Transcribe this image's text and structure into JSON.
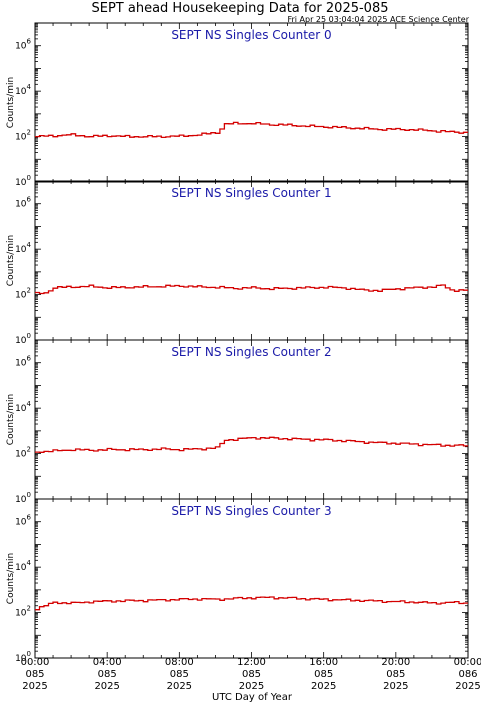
{
  "title": "SEPT ahead Housekeeping Data for 2025-085",
  "timestamp": "Fri Apr 25 03:04:04 2025 ACE Science Center",
  "xlabel": "UTC Day of Year",
  "colors": {
    "panel_title": "#1a1aa8",
    "series": "#d40000",
    "axis": "#000000"
  },
  "chart_data": [
    {
      "type": "line",
      "title": "SEPT NS Singles Counter 0",
      "ylabel": "Counts/min",
      "yscale": "log",
      "ylim": [
        1,
        10000000
      ],
      "yticks": [
        {
          "exp": "0"
        },
        {
          "exp": "2"
        },
        {
          "exp": "4"
        },
        {
          "exp": "6"
        }
      ],
      "xlim": [
        "085 00:00",
        "086 00:00"
      ],
      "series": [
        {
          "x_hours": [
            0,
            1,
            2,
            3,
            4,
            5,
            6,
            7,
            8,
            9,
            10,
            10.5,
            11,
            12,
            13,
            14,
            15,
            16,
            17,
            18,
            19,
            20,
            21,
            22,
            23,
            24
          ],
          "values": [
            100,
            110,
            120,
            100,
            110,
            100,
            100,
            100,
            105,
            120,
            150,
            350,
            380,
            380,
            340,
            320,
            290,
            270,
            250,
            230,
            210,
            210,
            200,
            180,
            160,
            150
          ]
        }
      ]
    },
    {
      "type": "line",
      "title": "SEPT NS Singles Counter 1",
      "ylabel": "Counts/min",
      "yscale": "log",
      "ylim": [
        1,
        10000000
      ],
      "yticks": [
        {
          "exp": "0"
        },
        {
          "exp": "2"
        },
        {
          "exp": "4"
        },
        {
          "exp": "6"
        }
      ],
      "xlim": [
        "085 00:00",
        "086 00:00"
      ],
      "series": [
        {
          "x_hours": [
            0,
            0.5,
            1,
            2,
            3,
            4,
            5,
            6,
            7,
            8,
            9,
            10,
            11,
            12,
            13,
            14,
            15,
            16,
            17,
            18,
            19,
            20,
            21,
            22,
            22.5,
            23,
            24
          ],
          "values": [
            110,
            120,
            200,
            220,
            230,
            200,
            210,
            220,
            230,
            240,
            220,
            210,
            190,
            200,
            180,
            190,
            200,
            210,
            200,
            160,
            150,
            180,
            200,
            220,
            250,
            160,
            150
          ]
        }
      ]
    },
    {
      "type": "line",
      "title": "SEPT NS Singles Counter 2",
      "ylabel": "Counts/min",
      "yscale": "log",
      "ylim": [
        1,
        10000000
      ],
      "yticks": [
        {
          "exp": "0"
        },
        {
          "exp": "2"
        },
        {
          "exp": "4"
        },
        {
          "exp": "6"
        }
      ],
      "xlim": [
        "085 00:00",
        "086 00:00"
      ],
      "series": [
        {
          "x_hours": [
            0,
            1,
            2,
            3,
            4,
            5,
            6,
            7,
            8,
            9,
            10,
            10.5,
            11,
            12,
            13,
            14,
            15,
            16,
            17,
            18,
            19,
            20,
            21,
            22,
            23,
            24
          ],
          "values": [
            120,
            130,
            150,
            140,
            150,
            150,
            150,
            160,
            150,
            160,
            180,
            400,
            420,
            500,
            480,
            450,
            420,
            400,
            370,
            330,
            300,
            280,
            260,
            240,
            230,
            220
          ]
        }
      ]
    },
    {
      "type": "line",
      "title": "SEPT NS Singles Counter 3",
      "ylabel": "Counts/min",
      "yscale": "log",
      "ylim": [
        1,
        10000000
      ],
      "yticks": [
        {
          "exp": "0"
        },
        {
          "exp": "2"
        },
        {
          "exp": "4"
        },
        {
          "exp": "6"
        }
      ],
      "xlim": [
        "085 00:00",
        "086 00:00"
      ],
      "series": [
        {
          "x_hours": [
            0,
            0.5,
            1,
            2,
            3,
            4,
            5,
            6,
            7,
            8,
            9,
            10,
            11,
            12,
            13,
            14,
            15,
            16,
            17,
            18,
            19,
            20,
            21,
            22,
            23,
            24
          ],
          "values": [
            150,
            200,
            280,
            260,
            300,
            320,
            330,
            340,
            360,
            380,
            400,
            380,
            420,
            450,
            460,
            440,
            400,
            380,
            360,
            340,
            320,
            300,
            290,
            260,
            280,
            260
          ]
        }
      ]
    }
  ],
  "x_ticks": [
    {
      "time": "00:00",
      "doy": "085",
      "year": "2025"
    },
    {
      "time": "04:00",
      "doy": "085",
      "year": "2025"
    },
    {
      "time": "08:00",
      "doy": "085",
      "year": "2025"
    },
    {
      "time": "12:00",
      "doy": "085",
      "year": "2025"
    },
    {
      "time": "16:00",
      "doy": "085",
      "year": "2025"
    },
    {
      "time": "20:00",
      "doy": "085",
      "year": "2025"
    },
    {
      "time": "00:00",
      "doy": "086",
      "year": "2025"
    }
  ]
}
